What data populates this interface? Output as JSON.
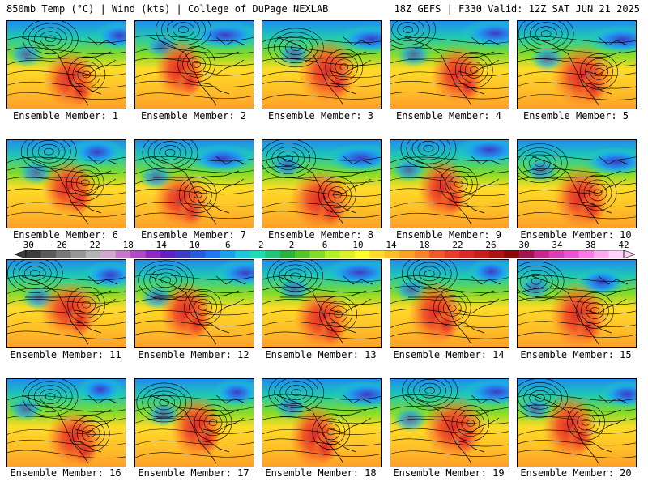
{
  "header": {
    "left_title": "850mb Temp (°C) | Wind (kts) | College of DuPage NEXLAB",
    "right_title": "18Z GEFS | F330 Valid: 12Z SAT JUN 21 2025"
  },
  "panels": [
    {
      "label": "Ensemble Member: 1"
    },
    {
      "label": "Ensemble Member: 2"
    },
    {
      "label": "Ensemble Member: 3"
    },
    {
      "label": "Ensemble Member: 4"
    },
    {
      "label": "Ensemble Member: 5"
    },
    {
      "label": "Ensemble Member: 6"
    },
    {
      "label": "Ensemble Member: 7"
    },
    {
      "label": "Ensemble Member: 8"
    },
    {
      "label": "Ensemble Member: 9"
    },
    {
      "label": "Ensemble Member: 10"
    },
    {
      "label": "Ensemble Member: 11"
    },
    {
      "label": "Ensemble Member: 12"
    },
    {
      "label": "Ensemble Member: 13"
    },
    {
      "label": "Ensemble Member: 14"
    },
    {
      "label": "Ensemble Member: 15"
    },
    {
      "label": "Ensemble Member: 16"
    },
    {
      "label": "Ensemble Member: 17"
    },
    {
      "label": "Ensemble Member: 18"
    },
    {
      "label": "Ensemble Member: 19"
    },
    {
      "label": "Ensemble Member: 20"
    }
  ],
  "colorbar": {
    "tick_labels": [
      "−30",
      "−26",
      "−22",
      "−18",
      "−14",
      "−10",
      "−6",
      "−2",
      "2",
      "6",
      "10",
      "14",
      "18",
      "22",
      "26",
      "30",
      "34",
      "38",
      "42"
    ],
    "colors": [
      "#3c3c3c",
      "#5a5a5a",
      "#787878",
      "#969696",
      "#b4b4b4",
      "#d2a8d2",
      "#c878c8",
      "#b048c8",
      "#8c28c8",
      "#6420c8",
      "#3c3cc8",
      "#285adc",
      "#1e78f0",
      "#1ea0f0",
      "#1ec8dc",
      "#1edcb4",
      "#1ec878",
      "#28b43c",
      "#50c828",
      "#82dc28",
      "#b4f028",
      "#dcf028",
      "#ffff28",
      "#ffdc28",
      "#ffbe28",
      "#ffa028",
      "#ff8228",
      "#f05a28",
      "#e63c28",
      "#dc2828",
      "#c81e1e",
      "#aa1414",
      "#8c0a0a",
      "#a01450",
      "#c8288c",
      "#dc3cb4",
      "#f050d2",
      "#ff78e6",
      "#ffaaf0",
      "#ffd2fa"
    ]
  }
}
